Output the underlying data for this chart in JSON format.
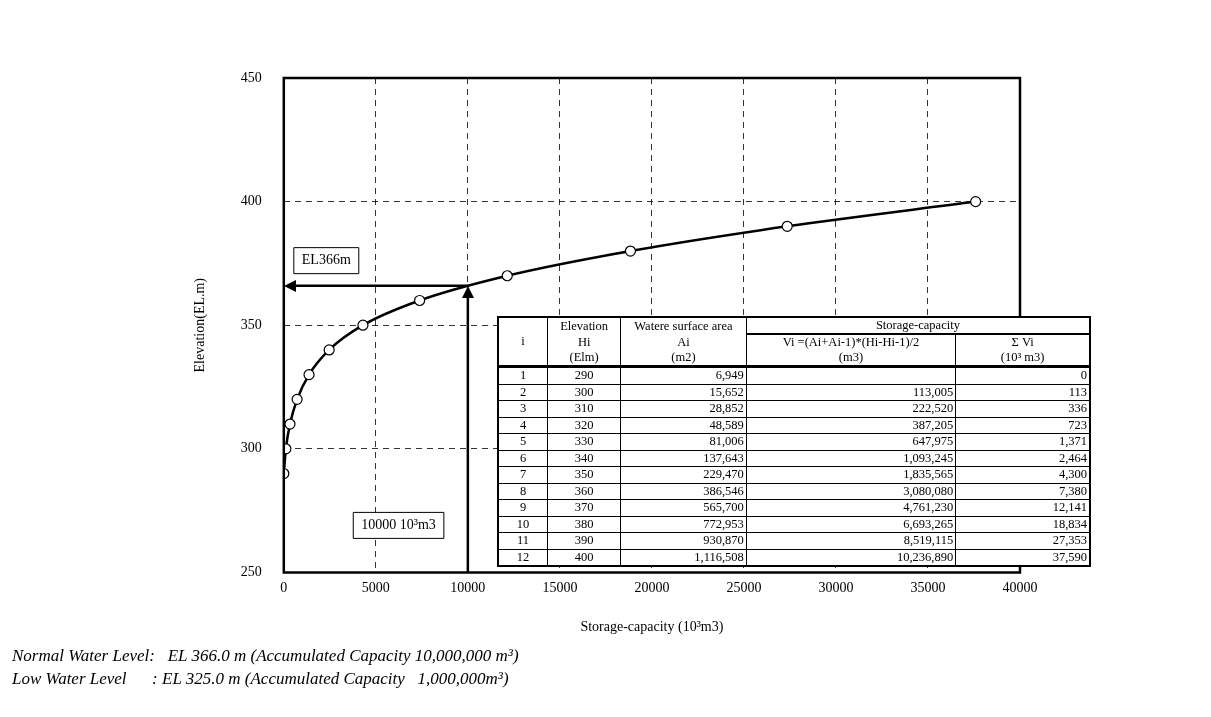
{
  "chart_data": {
    "type": "line",
    "xlabel": "Storage-capacity (10³m3)",
    "ylabel": "Elevation(EL.m)",
    "x": [
      0,
      113,
      336,
      723,
      1371,
      2464,
      4300,
      7380,
      12141,
      18834,
      27353,
      37590
    ],
    "series": [
      {
        "color": "#000000",
        "values": [
          290,
          300,
          310,
          320,
          330,
          340,
          350,
          360,
          370,
          380,
          390,
          400
        ]
      }
    ],
    "xlim": [
      0,
      40000
    ],
    "xticks": [
      0,
      5000,
      10000,
      15000,
      20000,
      25000,
      30000,
      35000,
      40000
    ],
    "ylim": [
      250,
      450
    ],
    "yticks": [
      250,
      300,
      350,
      400,
      450
    ],
    "grid": true,
    "marker": "circle",
    "line_style": "solid",
    "legend": false,
    "ref_lines": [
      {
        "axis": "y",
        "value": 366,
        "label": "EL366m"
      },
      {
        "axis": "x",
        "value": 10000,
        "label": "10000 10³m3"
      }
    ],
    "annotations": [
      "i",
      "Elevation",
      "Watere surface  area",
      "Storage-capacity",
      "Hi",
      "Ai",
      "Vi =(Ai+Ai-1)*(Hi-Hi-1)/2",
      "Σ Vi",
      "(Elm)",
      "(m2)",
      "(m3)",
      "(10³ m3)",
      "1",
      "290",
      "6,949",
      null,
      "0",
      "2",
      "300",
      "15,652",
      "113,005",
      "113",
      "3",
      "310",
      "28,852",
      "222,520",
      "336",
      "4",
      "320",
      "48,589",
      "387,205",
      "723",
      "5",
      "330",
      "81,006",
      "647,975",
      "1,371",
      "6",
      "340",
      "137,643",
      "1,093,245",
      "2,464",
      "7",
      "350",
      "229,470",
      "1,835,565",
      "4,300",
      "8",
      "360",
      "386,546",
      "3,080,080",
      "7,380",
      "9",
      "370",
      "565,700",
      "4,761,230",
      "12,141",
      "10",
      "380",
      "772,953",
      "6,693,265",
      "18,834",
      "11",
      "390",
      "930,870",
      "8,519,115",
      "27,353",
      "12",
      "400",
      "1,116,508",
      "10,236,890",
      "37,590",
      "Normal Water Level:   EL 366.0 m (Accumulated Capacity 10,000,000 m³)",
      "Low Water Level      : EL 325.0 m (Accumulated Capacity   1,000,000m³)"
    ]
  }
}
